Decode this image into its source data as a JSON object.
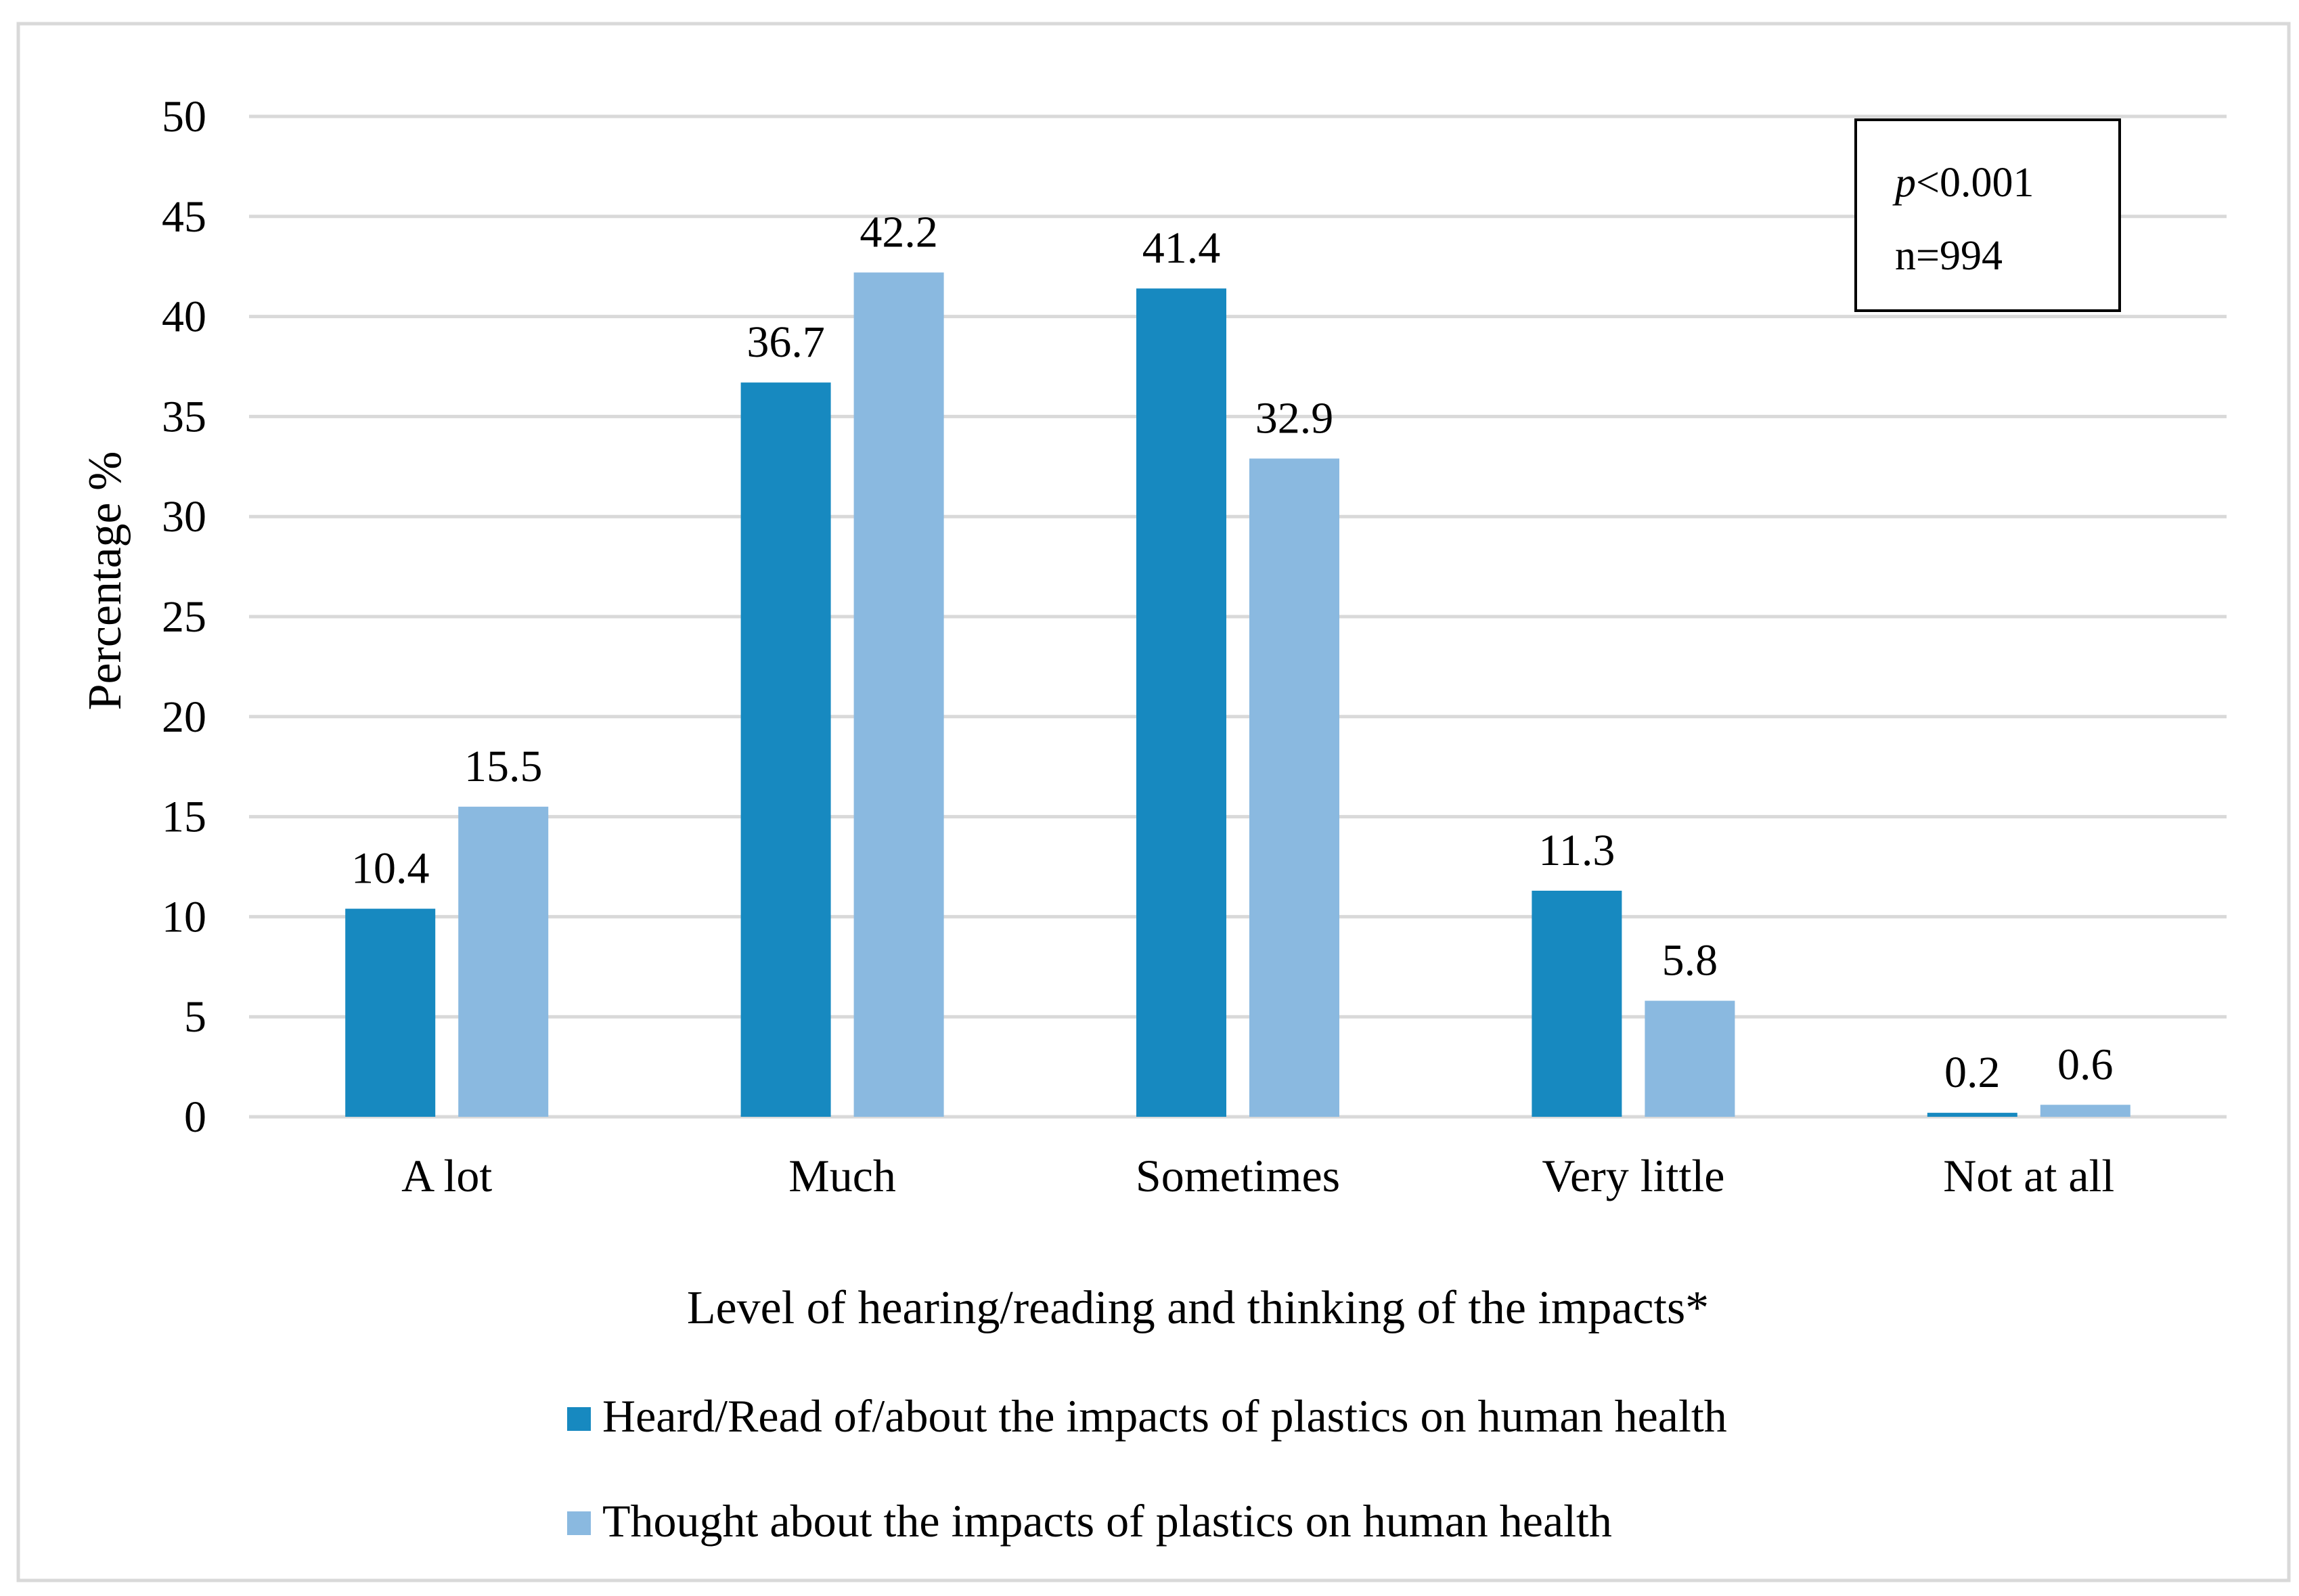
{
  "chart_data": {
    "type": "bar",
    "title": "",
    "xlabel": "Level of hearing/reading and thinking of the impacts*",
    "ylabel": "Percentage %",
    "ylim": [
      0,
      50
    ],
    "yticks": [
      0,
      5,
      10,
      15,
      20,
      25,
      30,
      35,
      40,
      45,
      50
    ],
    "grid": true,
    "categories": [
      "A lot",
      "Much",
      "Sometimes",
      "Very little",
      "Not at all"
    ],
    "series": [
      {
        "name": "Heard/Read of/about the impacts of plastics on human health",
        "color": "#1789c0",
        "values": [
          10.4,
          36.7,
          41.4,
          11.3,
          0.2
        ],
        "labels": [
          "10.4",
          "36.7",
          "41.4",
          "11.3",
          "0.2"
        ]
      },
      {
        "name": "Thought about the impacts of plastics on human health",
        "color": "#8ab9e0",
        "values": [
          15.5,
          42.2,
          32.9,
          5.8,
          0.6
        ],
        "labels": [
          "15.5",
          "42.2",
          "32.9",
          "5.8",
          "0.6"
        ]
      }
    ],
    "legend_position": "bottom",
    "annotation": {
      "p_symbol": "p",
      "p_value": "<0.001",
      "n": "n=994",
      "position": "top-right"
    },
    "colors": {
      "gridline": "#d9d9d9",
      "axis": "#d9d9d9",
      "frame": "#d9d9d9",
      "annotation_border": "#000000"
    }
  }
}
